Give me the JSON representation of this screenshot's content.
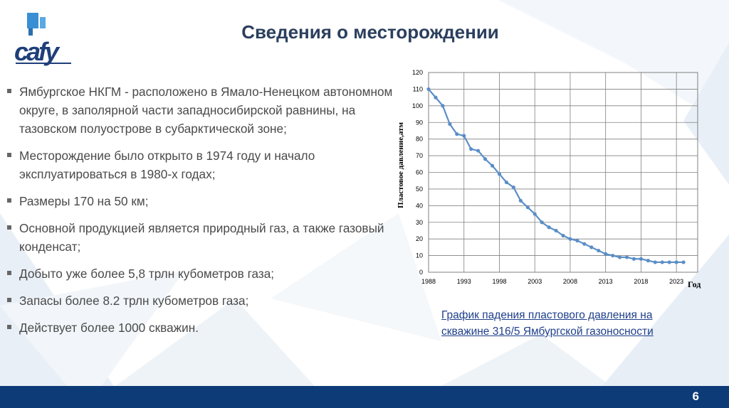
{
  "header": {
    "title": "Сведения о месторождении",
    "logo_text": "cafy"
  },
  "bullets": [
    "Ямбургское НКГМ - расположено в Ямало-Ненецком автономном округе, в заполярной части западносибирской равнины, на тазовском полуострове в субарктической зоне;",
    "Месторождение было открыто в 1974 году и начало эксплуатироваться в 1980-х годах;",
    "Размеры 170 на 50 км;",
    "Основной продукцией является природный газ, а также газовый конденсат;",
    "Добыто уже более 5,8 трлн кубометров газа;",
    "Запасы более 8.2 трлн кубометров газа;",
    "Действует более 1000 скважин."
  ],
  "chart_data": {
    "type": "line",
    "xlabel": "Год",
    "ylabel": "Пластовое давление,атм",
    "xlim": [
      1988,
      2026
    ],
    "ylim": [
      0,
      120
    ],
    "xticks": [
      "1988",
      "1993",
      "1998",
      "2003",
      "2008",
      "2013",
      "2018",
      "2023"
    ],
    "yticks": [
      "0",
      "10",
      "20",
      "30",
      "40",
      "50",
      "60",
      "70",
      "80",
      "90",
      "100",
      "110",
      "120"
    ],
    "grid": true,
    "series": [
      {
        "x": [
          1988,
          1989,
          1990,
          1991,
          1992,
          1993,
          1994,
          1995,
          1996,
          1997,
          1998,
          1999,
          2000,
          2001,
          2002,
          2003,
          2004,
          2005,
          2006,
          2007,
          2008,
          2009,
          2010,
          2011,
          2012,
          2013,
          2014,
          2015,
          2016,
          2017,
          2018,
          2019,
          2020,
          2021,
          2022,
          2023,
          2024
        ],
        "values": [
          110,
          105,
          100,
          89,
          83,
          82,
          74,
          73,
          68,
          64,
          59,
          54,
          51,
          43,
          39,
          35,
          30,
          27,
          25,
          22,
          20,
          19,
          17,
          15,
          13,
          11,
          10,
          9,
          9,
          8,
          8,
          7,
          6,
          6,
          6,
          6,
          6
        ]
      }
    ],
    "line_color": "#5b8ec7"
  },
  "caption": "График падения пластового давления на скважине 316/5 Ямбургской газоносности",
  "footer": {
    "page_number": "6",
    "bar_color": "#0d3b78"
  }
}
